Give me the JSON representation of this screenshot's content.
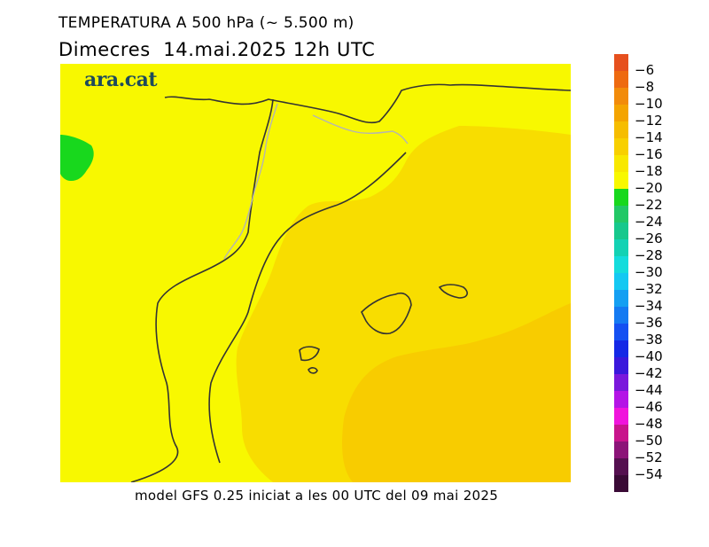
{
  "header": {
    "title": "TEMPERATURA A 500 hPa (~ 5.500 m)",
    "date": "Dimecres  14.mai.2025 12h UTC"
  },
  "footer": {
    "model_info": "model GFS 0.25 iniciat a les 00 UTC del 09 mai 2025"
  },
  "map": {
    "logo": "ara.cat",
    "field_colors": {
      "yellow": "#f8f800",
      "gold": "#f8dd00",
      "orange_gold": "#f8cc00",
      "green": "#18d81d",
      "border": "#333333",
      "boundary": "#b4b4b4"
    }
  },
  "legend": {
    "labels": [
      "-6",
      "-8",
      "-10",
      "-12",
      "-14",
      "-16",
      "-18",
      "-20",
      "-22",
      "-24",
      "-26",
      "-28",
      "-30",
      "-32",
      "-34",
      "-36",
      "-38",
      "-40",
      "-42",
      "-44",
      "-46",
      "-48",
      "-50",
      "-52",
      "-54"
    ],
    "colors": [
      "#e6501e",
      "#ee6a10",
      "#f28b0a",
      "#f4a400",
      "#f6bd00",
      "#f8d000",
      "#f8e800",
      "#f8f800",
      "#18d81d",
      "#22c866",
      "#16c88c",
      "#13d2b4",
      "#14dcdc",
      "#14c8f2",
      "#149ff2",
      "#147af2",
      "#1450f2",
      "#1428e6",
      "#3a18dc",
      "#7a18dc",
      "#b414e6",
      "#f014dc",
      "#c8148c",
      "#8c1478",
      "#551050",
      "#3a0a36"
    ]
  }
}
